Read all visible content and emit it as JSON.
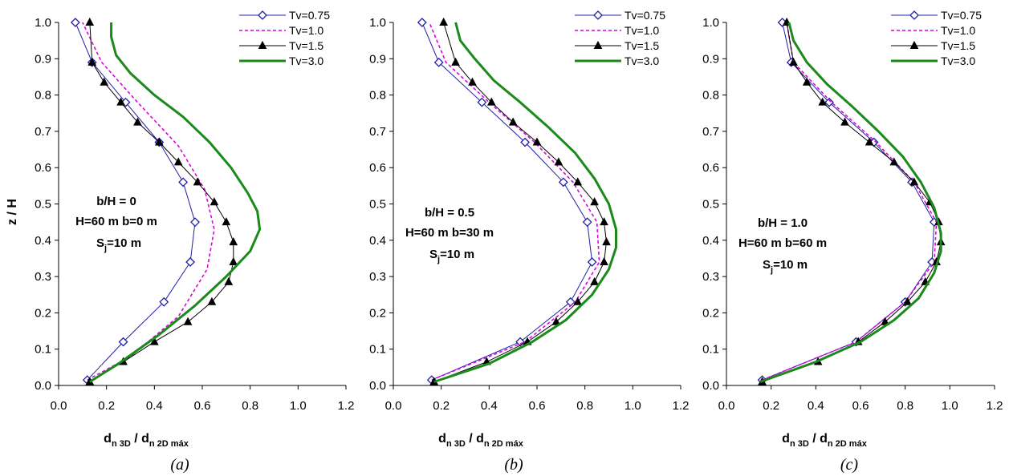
{
  "colors": {
    "tv075": "#1f1fa8",
    "tv10": "#e000e0",
    "tv15": "#000000",
    "tv30": "#1a8a1a",
    "axis": "#000000"
  },
  "chart_data": [
    {
      "type": "line",
      "panel_label": "(a)",
      "xlabel": {
        "main": "d",
        "sub1": "n 3D",
        "slash": " / d",
        "sub2": "n 2D máx"
      },
      "ylabel": "z / H",
      "show_ylabel": true,
      "xlim": [
        0.0,
        1.2
      ],
      "ylim": [
        0.0,
        1.0
      ],
      "xticks": [
        "0.0",
        "0.2",
        "0.4",
        "0.6",
        "0.8",
        "1.0",
        "1.2"
      ],
      "yticks": [
        "0.0",
        "0.1",
        "0.2",
        "0.3",
        "0.4",
        "0.5",
        "0.6",
        "0.7",
        "0.8",
        "0.9",
        "1.0"
      ],
      "grid": false,
      "legend_position": "top-right",
      "annotation": {
        "line1": "b/H = 0",
        "line2": "H=60 m  b=0 m",
        "line3_main": "S",
        "line3_sub": "j",
        "line3_rest": "=10 m"
      },
      "series": [
        {
          "name": "Tv=0.75",
          "style": "tv075",
          "x": [
            0.12,
            0.27,
            0.44,
            0.55,
            0.57,
            0.52,
            0.42,
            0.28,
            0.14,
            0.07
          ],
          "y": [
            0.015,
            0.12,
            0.23,
            0.34,
            0.45,
            0.56,
            0.67,
            0.78,
            0.89,
            1.0
          ]
        },
        {
          "name": "Tv=1.0",
          "style": "tv10",
          "x": [
            0.12,
            0.3,
            0.5,
            0.62,
            0.65,
            0.61,
            0.5,
            0.33,
            0.18,
            0.1
          ],
          "y": [
            0.015,
            0.08,
            0.19,
            0.32,
            0.43,
            0.54,
            0.66,
            0.78,
            0.89,
            1.0
          ]
        },
        {
          "name": "Tv=1.5",
          "style": "tv15",
          "x": [
            0.13,
            0.27,
            0.4,
            0.54,
            0.64,
            0.71,
            0.73,
            0.73,
            0.7,
            0.65,
            0.58,
            0.5,
            0.42,
            0.33,
            0.26,
            0.19,
            0.14,
            0.13
          ],
          "y": [
            0.01,
            0.065,
            0.12,
            0.175,
            0.23,
            0.285,
            0.34,
            0.395,
            0.45,
            0.505,
            0.56,
            0.615,
            0.67,
            0.725,
            0.78,
            0.835,
            0.89,
            1.0
          ]
        },
        {
          "name": "Tv=3.0",
          "style": "tv30",
          "x": [
            0.13,
            0.25,
            0.42,
            0.57,
            0.7,
            0.8,
            0.84,
            0.83,
            0.79,
            0.72,
            0.63,
            0.52,
            0.4,
            0.3,
            0.24,
            0.22,
            0.22
          ],
          "y": [
            0.01,
            0.06,
            0.14,
            0.22,
            0.3,
            0.37,
            0.43,
            0.48,
            0.53,
            0.6,
            0.67,
            0.74,
            0.8,
            0.86,
            0.91,
            0.96,
            1.0
          ]
        }
      ]
    },
    {
      "type": "line",
      "panel_label": "(b)",
      "xlabel": {
        "main": "d",
        "sub1": "n 3D",
        "slash": " / d",
        "sub2": "n 2D máx"
      },
      "ylabel": "",
      "show_ylabel": false,
      "xlim": [
        0.0,
        1.2
      ],
      "ylim": [
        0.0,
        1.0
      ],
      "xticks": [
        "0.0",
        "0.2",
        "0.4",
        "0.6",
        "0.8",
        "1.0",
        "1.2"
      ],
      "yticks": [
        "0.0",
        "0.1",
        "0.2",
        "0.3",
        "0.4",
        "0.5",
        "0.6",
        "0.7",
        "0.8",
        "0.9",
        "1.0"
      ],
      "grid": false,
      "legend_position": "top-right",
      "annotation": {
        "line1": "b/H = 0.5",
        "line2": "H=60 m  b=30 m",
        "line3_main": "S",
        "line3_sub": "j",
        "line3_rest": "=10 m"
      },
      "series": [
        {
          "name": "Tv=0.75",
          "style": "tv075",
          "x": [
            0.16,
            0.53,
            0.74,
            0.83,
            0.81,
            0.71,
            0.55,
            0.37,
            0.19,
            0.12
          ],
          "y": [
            0.015,
            0.12,
            0.23,
            0.34,
            0.45,
            0.56,
            0.67,
            0.78,
            0.89,
            1.0
          ]
        },
        {
          "name": "Tv=1.0",
          "style": "tv10",
          "x": [
            0.16,
            0.55,
            0.76,
            0.86,
            0.85,
            0.75,
            0.59,
            0.4,
            0.22,
            0.15
          ],
          "y": [
            0.015,
            0.12,
            0.23,
            0.34,
            0.45,
            0.56,
            0.67,
            0.78,
            0.89,
            1.0
          ]
        },
        {
          "name": "Tv=1.5",
          "style": "tv15",
          "x": [
            0.17,
            0.39,
            0.56,
            0.68,
            0.77,
            0.84,
            0.88,
            0.89,
            0.88,
            0.84,
            0.77,
            0.69,
            0.6,
            0.5,
            0.41,
            0.33,
            0.26,
            0.21
          ],
          "y": [
            0.01,
            0.065,
            0.12,
            0.175,
            0.23,
            0.285,
            0.34,
            0.395,
            0.45,
            0.505,
            0.56,
            0.615,
            0.67,
            0.725,
            0.78,
            0.835,
            0.89,
            1.0
          ]
        },
        {
          "name": "Tv=3.0",
          "style": "tv30",
          "x": [
            0.17,
            0.4,
            0.58,
            0.72,
            0.83,
            0.9,
            0.93,
            0.93,
            0.9,
            0.84,
            0.76,
            0.65,
            0.53,
            0.42,
            0.34,
            0.28,
            0.26
          ],
          "y": [
            0.01,
            0.06,
            0.12,
            0.18,
            0.25,
            0.32,
            0.38,
            0.43,
            0.5,
            0.57,
            0.64,
            0.71,
            0.78,
            0.84,
            0.9,
            0.95,
            1.0
          ]
        }
      ]
    },
    {
      "type": "line",
      "panel_label": "(c)",
      "xlabel": {
        "main": "d",
        "sub1": "n 3D",
        "slash": " / d",
        "sub2": "n 2D máx"
      },
      "ylabel": "",
      "show_ylabel": false,
      "xlim": [
        0.0,
        1.2
      ],
      "ylim": [
        0.0,
        1.0
      ],
      "xticks": [
        "0.0",
        "0.2",
        "0.4",
        "0.6",
        "0.8",
        "1.0",
        "1.2"
      ],
      "yticks": [
        "0.0",
        "0.1",
        "0.2",
        "0.3",
        "0.4",
        "0.5",
        "0.6",
        "0.7",
        "0.8",
        "0.9",
        "1.0"
      ],
      "grid": false,
      "legend_position": "top-right",
      "annotation": {
        "line1": "b/H = 1.0",
        "line2": "H=60 m  b=60 m",
        "line3_main": "S",
        "line3_sub": "j",
        "line3_rest": "=10 m"
      },
      "series": [
        {
          "name": "Tv=0.75",
          "style": "tv075",
          "x": [
            0.16,
            0.58,
            0.8,
            0.92,
            0.93,
            0.83,
            0.66,
            0.46,
            0.29,
            0.25
          ],
          "y": [
            0.015,
            0.12,
            0.23,
            0.34,
            0.45,
            0.56,
            0.67,
            0.78,
            0.89,
            1.0
          ]
        },
        {
          "name": "Tv=1.0",
          "style": "tv10",
          "x": [
            0.16,
            0.58,
            0.8,
            0.93,
            0.94,
            0.84,
            0.67,
            0.47,
            0.3,
            0.27
          ],
          "y": [
            0.015,
            0.12,
            0.23,
            0.34,
            0.45,
            0.56,
            0.67,
            0.78,
            0.89,
            1.0
          ]
        },
        {
          "name": "Tv=1.5",
          "style": "tv15",
          "x": [
            0.16,
            0.41,
            0.59,
            0.71,
            0.81,
            0.89,
            0.94,
            0.96,
            0.95,
            0.91,
            0.84,
            0.75,
            0.64,
            0.53,
            0.43,
            0.36,
            0.3,
            0.27
          ],
          "y": [
            0.01,
            0.065,
            0.12,
            0.175,
            0.23,
            0.285,
            0.34,
            0.395,
            0.45,
            0.505,
            0.56,
            0.615,
            0.67,
            0.725,
            0.78,
            0.835,
            0.89,
            1.0
          ]
        },
        {
          "name": "Tv=3.0",
          "style": "tv30",
          "x": [
            0.15,
            0.4,
            0.6,
            0.75,
            0.86,
            0.93,
            0.96,
            0.96,
            0.93,
            0.87,
            0.79,
            0.68,
            0.56,
            0.45,
            0.36,
            0.3,
            0.28
          ],
          "y": [
            0.01,
            0.065,
            0.12,
            0.18,
            0.24,
            0.31,
            0.37,
            0.42,
            0.49,
            0.56,
            0.63,
            0.7,
            0.77,
            0.83,
            0.89,
            0.95,
            1.0
          ]
        }
      ]
    }
  ]
}
